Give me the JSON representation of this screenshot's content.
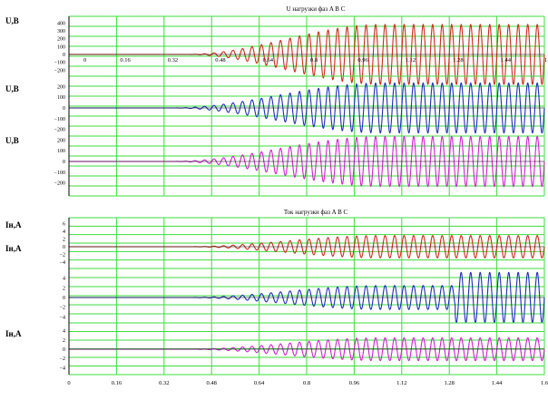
{
  "chart_data": [
    {
      "type": "line",
      "title": "U нагрузки фаз A B C",
      "x_range": [
        0,
        1.6
      ],
      "x_tick_labels": [
        "0",
        "0.16",
        "0.32",
        "0.48",
        "0.64",
        "0.8",
        "0.96",
        "1.12",
        "1.28",
        "1.44",
        "1.6"
      ],
      "grid": true,
      "panels": [
        {
          "ylabel": "U,В",
          "ylim": [
            -200,
            400
          ],
          "y_tick_labels": [
            "400",
            "300",
            "200",
            "100",
            "0",
            "−100",
            "−200"
          ],
          "series": [
            {
              "color": "#cc2a1a",
              "baseline": 0,
              "amplitude_start": 0,
              "amplitude_end": 300,
              "growth_start": 0.4,
              "growth_end": 1.05,
              "periods": 50
            }
          ]
        },
        {
          "ylabel": "U,В",
          "ylim": [
            -300,
            300
          ],
          "y_tick_labels": [
            "200",
            "100",
            "0",
            "−100",
            "−200"
          ],
          "series": [
            {
              "color": "#1c2fb8",
              "baseline": 0,
              "amplitude_start": 0,
              "amplitude_end": 250,
              "growth_start": 0.35,
              "growth_end": 1.05,
              "periods": 50
            }
          ]
        },
        {
          "ylabel": "U,В",
          "ylim": [
            -300,
            300
          ],
          "y_tick_labels": [
            "200",
            "100",
            "0",
            "−100",
            "−200"
          ],
          "series": [
            {
              "color": "#cc22cc",
              "baseline": 0,
              "amplitude_start": 0,
              "amplitude_end": 250,
              "growth_start": 0.35,
              "growth_end": 1.05,
              "periods": 50
            }
          ]
        }
      ]
    },
    {
      "type": "line",
      "title": "Ток нагрузки фаз A B C",
      "x_range": [
        0,
        1.6
      ],
      "x_tick_labels": [
        "0",
        "0.16",
        "0.32",
        "0.48",
        "0.64",
        "0.8",
        "0.96",
        "1.12",
        "1.28",
        "1.44",
        "1.6"
      ],
      "grid": true,
      "panels": [
        {
          "ylabel": "Iн,А",
          "ylim": [
            -4,
            6
          ],
          "y_tick_labels": [
            "6",
            "4",
            "2",
            "0",
            "−2",
            "−4"
          ],
          "series": [
            {
              "color": "#cc2a1a",
              "baseline": 0,
              "amplitude_start": 0,
              "amplitude_end": 2.2,
              "growth_start": 0.4,
              "growth_end": 1.05,
              "periods": 50
            }
          ]
        },
        {
          "ylabel": "Iн,А",
          "ylim": [
            -4,
            6
          ],
          "y_tick_labels": [
            "4",
            "2",
            "0",
            "−2",
            "−4"
          ],
          "series": [
            {
              "color": "#1c2fb8",
              "baseline": 0,
              "amplitude_start": 0,
              "amplitude_end": 2.2,
              "growth_start": 0.4,
              "growth_end": 1.05,
              "periods": 50,
              "step_at": 1.3,
              "amplitude_after_step": 4.6
            }
          ]
        },
        {
          "ylabel": "Iн,А",
          "ylim": [
            -4,
            6
          ],
          "y_tick_labels": [
            "4",
            "2",
            "0",
            "−2",
            "−4"
          ],
          "series": [
            {
              "color": "#cc22cc",
              "baseline": 0,
              "amplitude_start": 0,
              "amplitude_end": 2.2,
              "growth_start": 0.4,
              "growth_end": 1.05,
              "periods": 50
            }
          ]
        }
      ]
    }
  ]
}
